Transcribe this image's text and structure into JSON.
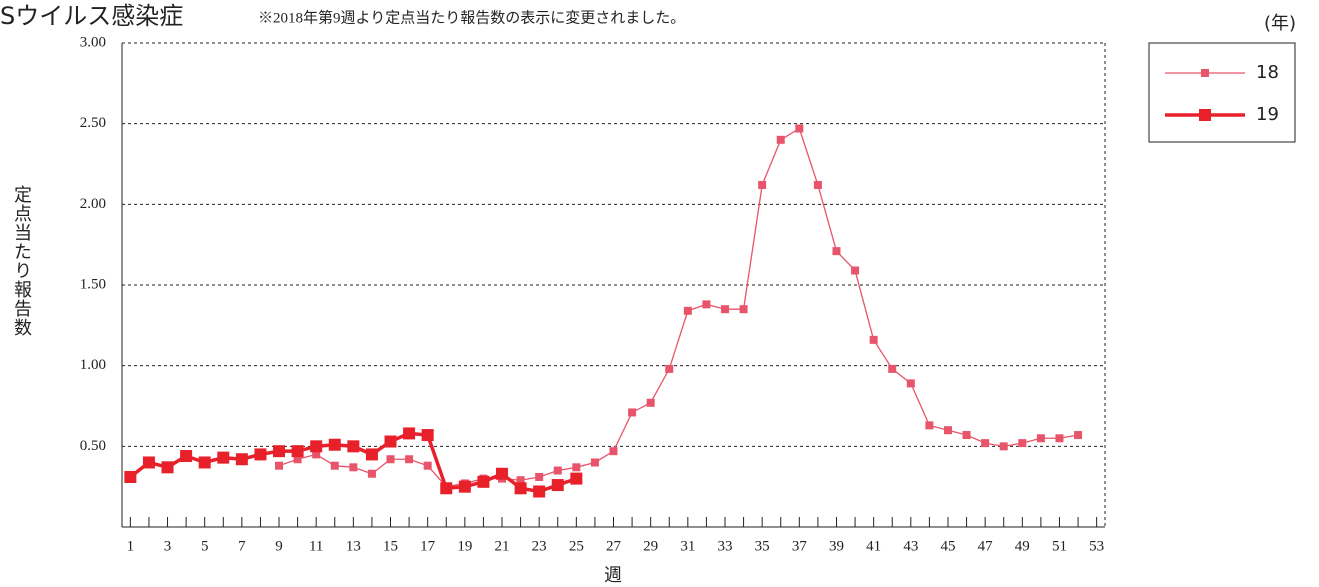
{
  "chart_data": {
    "type": "line",
    "title": "Sウイルス感染症",
    "subtitle": "※2018年第9週より定点当たり報告数の表示に変更されました。",
    "y_label": "定点当たり報告数",
    "x_label": "週",
    "legend_title": "(年)",
    "x": [
      1,
      2,
      3,
      4,
      5,
      6,
      7,
      8,
      9,
      10,
      11,
      12,
      13,
      14,
      15,
      16,
      17,
      18,
      19,
      20,
      21,
      22,
      23,
      24,
      25,
      26,
      27,
      28,
      29,
      30,
      31,
      32,
      33,
      34,
      35,
      36,
      37,
      38,
      39,
      40,
      41,
      42,
      43,
      44,
      45,
      46,
      47,
      48,
      49,
      50,
      51,
      52
    ],
    "series": [
      {
        "name": "18",
        "color": "#e8546a",
        "values": [
          null,
          null,
          null,
          null,
          null,
          null,
          null,
          null,
          0.38,
          0.42,
          0.45,
          0.38,
          0.37,
          0.33,
          0.42,
          0.42,
          0.38,
          0.25,
          0.27,
          0.3,
          0.3,
          0.29,
          0.31,
          0.35,
          0.37,
          0.4,
          0.47,
          0.71,
          0.77,
          0.98,
          1.34,
          1.38,
          1.35,
          1.35,
          2.12,
          2.4,
          2.47,
          2.12,
          1.71,
          1.59,
          1.16,
          0.98,
          0.89,
          0.63,
          0.6,
          0.57,
          0.52,
          0.5,
          0.52,
          0.55,
          0.55,
          0.57
        ]
      },
      {
        "name": "19",
        "color": "#e8202a",
        "values": [
          0.31,
          0.4,
          0.37,
          0.44,
          0.4,
          0.43,
          0.42,
          0.45,
          0.47,
          0.47,
          0.5,
          0.51,
          0.5,
          0.45,
          0.53,
          0.58,
          0.57,
          0.24,
          0.25,
          0.28,
          0.33,
          0.24,
          0.22,
          0.26,
          0.3,
          null,
          null,
          null,
          null,
          null,
          null,
          null,
          null,
          null,
          null,
          null,
          null,
          null,
          null,
          null,
          null,
          null,
          null,
          null,
          null,
          null,
          null,
          null,
          null,
          null,
          null,
          null
        ]
      }
    ],
    "xlim": [
      0.55,
      53.45
    ],
    "xticks": [
      1,
      3,
      5,
      7,
      9,
      11,
      13,
      15,
      17,
      19,
      21,
      23,
      25,
      27,
      29,
      31,
      33,
      35,
      37,
      39,
      41,
      43,
      45,
      47,
      49,
      51,
      53
    ],
    "ylim": [
      0,
      3
    ],
    "yticks": [
      {
        "value": 0.5,
        "label": "0.50"
      },
      {
        "value": 1,
        "label": "1.00"
      },
      {
        "value": 1.5,
        "label": "1.50"
      },
      {
        "value": 2,
        "label": "2.00"
      },
      {
        "value": 2.5,
        "label": "2.50"
      },
      {
        "value": 3,
        "label": "3.00"
      }
    ],
    "grid": true,
    "legend": "upper right"
  }
}
